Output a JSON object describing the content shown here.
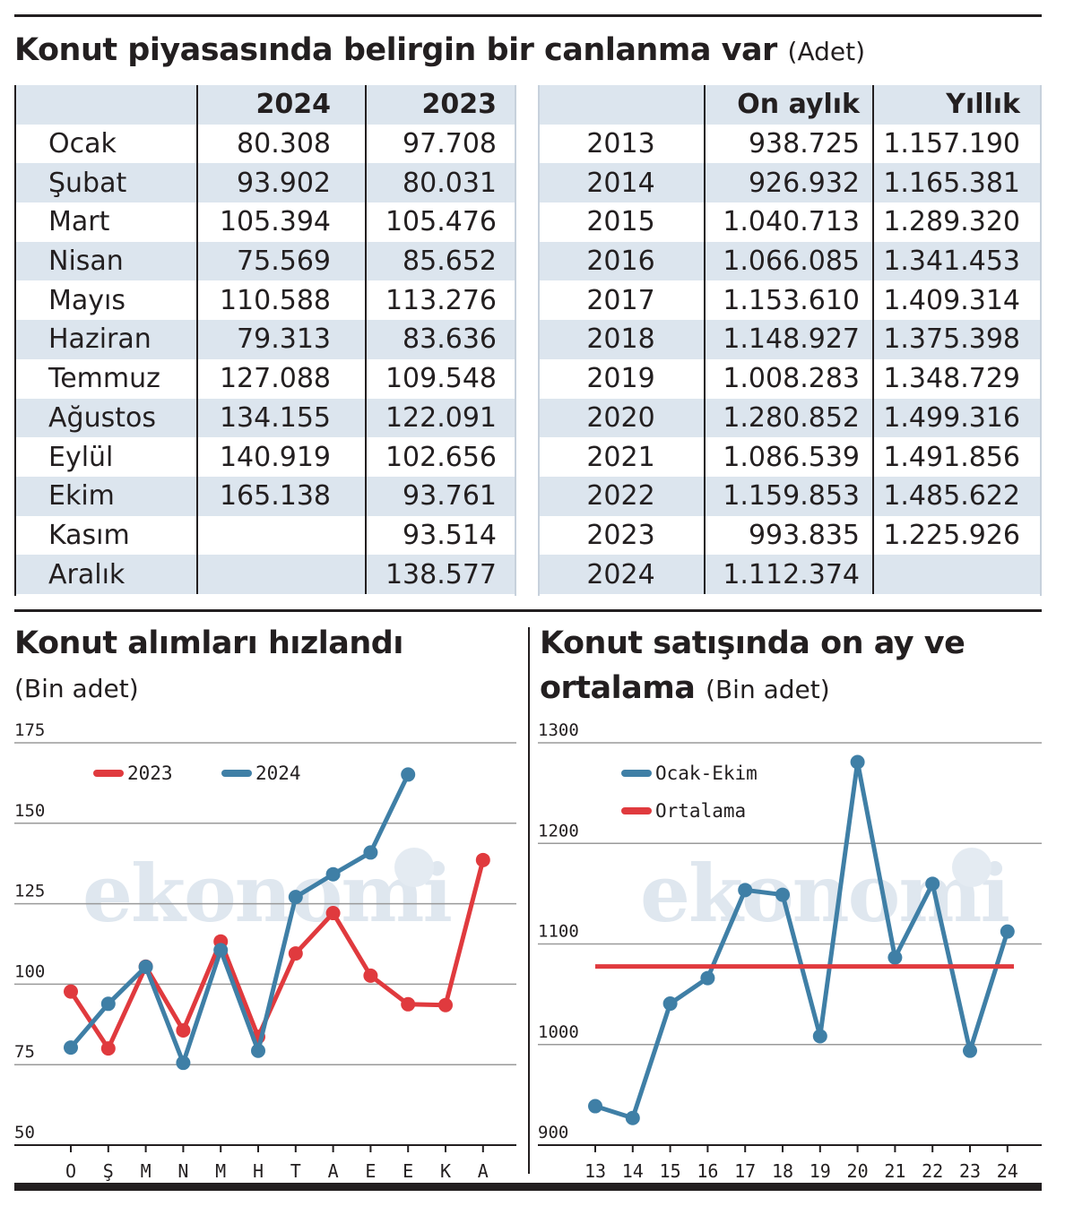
{
  "title": "Konut piyasasında belirgin bir canlanma var",
  "title_unit": "(Adet)",
  "monthly_table": {
    "headers": [
      "",
      "2024",
      "2023"
    ],
    "rows": [
      {
        "month": "Ocak",
        "v2024": "80.308",
        "v2023": "97.708"
      },
      {
        "month": "Şubat",
        "v2024": "93.902",
        "v2023": "80.031"
      },
      {
        "month": "Mart",
        "v2024": "105.394",
        "v2023": "105.476"
      },
      {
        "month": "Nisan",
        "v2024": "75.569",
        "v2023": "85.652"
      },
      {
        "month": "Mayıs",
        "v2024": "110.588",
        "v2023": "113.276"
      },
      {
        "month": "Haziran",
        "v2024": "79.313",
        "v2023": "83.636"
      },
      {
        "month": "Temmuz",
        "v2024": "127.088",
        "v2023": "109.548"
      },
      {
        "month": "Ağustos",
        "v2024": "134.155",
        "v2023": "122.091"
      },
      {
        "month": "Eylül",
        "v2024": "140.919",
        "v2023": "102.656"
      },
      {
        "month": "Ekim",
        "v2024": "165.138",
        "v2023": "93.761"
      },
      {
        "month": "Kasım",
        "v2024": "",
        "v2023": "93.514"
      },
      {
        "month": "Aralık",
        "v2024": "",
        "v2023": "138.577"
      }
    ]
  },
  "annual_table": {
    "headers": [
      "",
      "On aylık",
      "Yıllık"
    ],
    "rows": [
      {
        "year": "2013",
        "ten_month": "938.725",
        "annual": "1.157.190"
      },
      {
        "year": "2014",
        "ten_month": "926.932",
        "annual": "1.165.381"
      },
      {
        "year": "2015",
        "ten_month": "1.040.713",
        "annual": "1.289.320"
      },
      {
        "year": "2016",
        "ten_month": "1.066.085",
        "annual": "1.341.453"
      },
      {
        "year": "2017",
        "ten_month": "1.153.610",
        "annual": "1.409.314"
      },
      {
        "year": "2018",
        "ten_month": "1.148.927",
        "annual": "1.375.398"
      },
      {
        "year": "2019",
        "ten_month": "1.008.283",
        "annual": "1.348.729"
      },
      {
        "year": "2020",
        "ten_month": "1.280.852",
        "annual": "1.499.316"
      },
      {
        "year": "2021",
        "ten_month": "1.086.539",
        "annual": "1.491.856"
      },
      {
        "year": "2022",
        "ten_month": "1.159.853",
        "annual": "1.485.622"
      },
      {
        "year": "2023",
        "ten_month": "993.835",
        "annual": "1.225.926"
      },
      {
        "year": "2024",
        "ten_month": "1.112.374",
        "annual": ""
      }
    ]
  },
  "chart1": {
    "title": "Konut alımları hızlandı",
    "subtitle": "(Bin adet)"
  },
  "chart2": {
    "title_line1": "Konut satışında on ay ve",
    "title_line2": "ortalama",
    "title_unit": "(Bin adet)"
  },
  "watermark": "ekonomi",
  "colors": {
    "blue": "#3f7fa6",
    "red": "#e03a3e",
    "band": "#dce5ee",
    "ink": "#231f20"
  },
  "chart_data": [
    {
      "type": "line",
      "title": "Konut alımları hızlandı",
      "categories": [
        "O",
        "Ş",
        "M",
        "N",
        "M",
        "H",
        "T",
        "A",
        "E",
        "E",
        "K",
        "A"
      ],
      "y_ticks": [
        175,
        150,
        125,
        100,
        75,
        50
      ],
      "ylim": [
        50,
        175
      ],
      "grid": true,
      "legend_position": "top-left",
      "series": [
        {
          "name": "2023",
          "color": "#e03a3e",
          "values": [
            97.708,
            80.031,
            105.476,
            85.652,
            113.276,
            83.636,
            109.548,
            122.091,
            102.656,
            93.761,
            93.514,
            138.577
          ]
        },
        {
          "name": "2024",
          "color": "#3f7fa6",
          "values": [
            80.308,
            93.902,
            105.394,
            75.569,
            110.588,
            79.313,
            127.088,
            134.155,
            140.919,
            165.138,
            null,
            null
          ]
        }
      ]
    },
    {
      "type": "line",
      "title": "Konut satışında on ay ve ortalama",
      "categories": [
        "13",
        "14",
        "15",
        "16",
        "17",
        "18",
        "19",
        "20",
        "21",
        "22",
        "23",
        "24"
      ],
      "y_ticks": [
        1300,
        1200,
        1100,
        1000,
        900
      ],
      "ylim": [
        900,
        1300
      ],
      "grid": true,
      "legend_position": "top-left",
      "series": [
        {
          "name": "Ocak-Ekim",
          "color": "#3f7fa6",
          "values": [
            938.725,
            926.932,
            1040.713,
            1066.085,
            1153.61,
            1148.927,
            1008.283,
            1280.852,
            1086.539,
            1159.853,
            993.835,
            1112.374
          ]
        },
        {
          "name": "Ortalama",
          "color": "#e03a3e",
          "values": [
            1077.58,
            1077.58,
            1077.58,
            1077.58,
            1077.58,
            1077.58,
            1077.58,
            1077.58,
            1077.58,
            1077.58,
            1077.58,
            1077.58
          ]
        }
      ]
    }
  ]
}
